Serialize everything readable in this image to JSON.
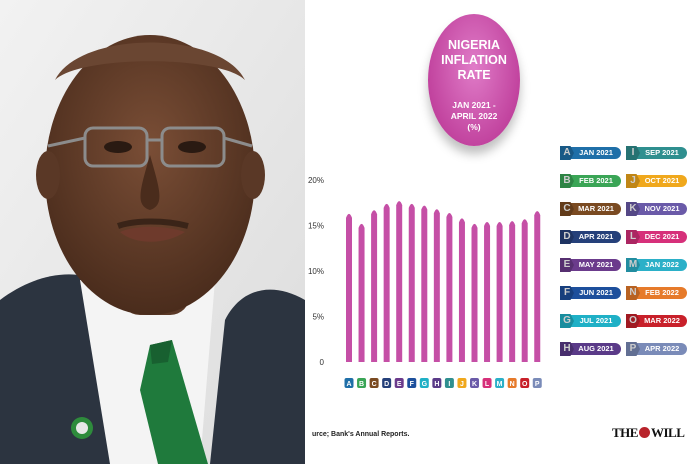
{
  "title": {
    "line1": "NIGERIA",
    "line2": "INFLATION",
    "line3": "RATE",
    "period1": "JAN 2021 -",
    "period2": "APRIL 2022",
    "unit": "(%)"
  },
  "source": "urce; Bank's Annual Reports.",
  "logo": {
    "left": "THE",
    "right": "WILL"
  },
  "colors": {
    "bar": "#c54fa6",
    "accent": "#c2449f"
  },
  "chart_data": {
    "type": "bar",
    "categories": [
      "A",
      "B",
      "C",
      "D",
      "E",
      "F",
      "G",
      "H",
      "I",
      "J",
      "K",
      "L",
      "M",
      "N",
      "O",
      "P"
    ],
    "values": [
      16.5,
      15.4,
      16.9,
      17.6,
      17.9,
      17.6,
      17.4,
      17.0,
      16.6,
      16.0,
      15.4,
      15.6,
      15.6,
      15.7,
      15.9,
      16.8
    ],
    "data_labels": [
      "",
      "",
      "",
      "",
      "",
      "",
      "",
      "",
      "",
      "",
      "",
      "",
      "",
      "",
      "",
      ""
    ],
    "yticks": [
      "0",
      "5%",
      "10%",
      "15%",
      "20%"
    ],
    "ylim": [
      0,
      20
    ],
    "title": "NIGERIA INFLATION RATE JAN 2021 - APRIL 2022 (%)",
    "legend_position": "right"
  },
  "legend": [
    {
      "letter": "A",
      "label": "JAN 2021",
      "color": "#1f6fa8"
    },
    {
      "letter": "B",
      "label": "FEB 2021",
      "color": "#3aa556"
    },
    {
      "letter": "C",
      "label": "MAR 2021",
      "color": "#7a4a21"
    },
    {
      "letter": "D",
      "label": "APR 2021",
      "color": "#25407a"
    },
    {
      "letter": "E",
      "label": "MAY 2021",
      "color": "#6b3b8c"
    },
    {
      "letter": "F",
      "label": "JUN 2021",
      "color": "#1d4f9c"
    },
    {
      "letter": "G",
      "label": "JUL 2021",
      "color": "#1fb0c6"
    },
    {
      "letter": "H",
      "label": "AUG 2021",
      "color": "#5a3a88"
    },
    {
      "letter": "I",
      "label": "SEP 2021",
      "color": "#2f8f8f"
    },
    {
      "letter": "J",
      "label": "OCT 2021",
      "color": "#f0a81c"
    },
    {
      "letter": "K",
      "label": "NOV 2021",
      "color": "#6a5aa8"
    },
    {
      "letter": "L",
      "label": "DEC 2021",
      "color": "#d6307a"
    },
    {
      "letter": "M",
      "label": "JAN 2022",
      "color": "#2bb0c8"
    },
    {
      "letter": "N",
      "label": "FEB 2022",
      "color": "#e67a2a"
    },
    {
      "letter": "O",
      "label": "MAR 2022",
      "color": "#c8202a"
    },
    {
      "letter": "P",
      "label": "APR 2022",
      "color": "#7a8bb8"
    }
  ]
}
